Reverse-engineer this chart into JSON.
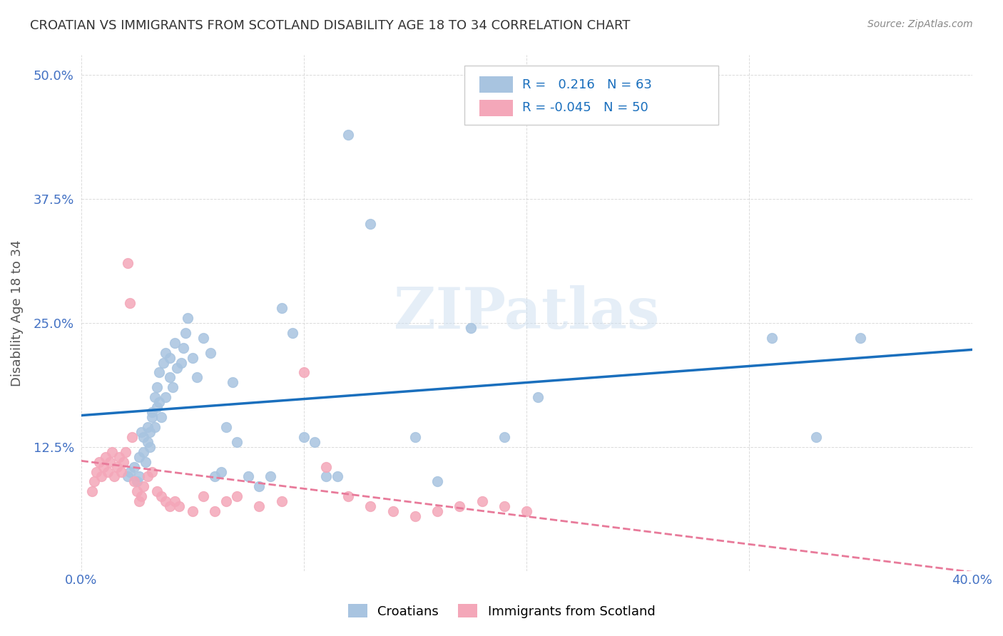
{
  "title": "CROATIAN VS IMMIGRANTS FROM SCOTLAND DISABILITY AGE 18 TO 34 CORRELATION CHART",
  "source": "Source: ZipAtlas.com",
  "ylabel": "Disability Age 18 to 34",
  "xlim": [
    0.0,
    0.4
  ],
  "ylim": [
    0.0,
    0.52
  ],
  "xticks": [
    0.0,
    0.1,
    0.2,
    0.3,
    0.4
  ],
  "yticks": [
    0.0,
    0.125,
    0.25,
    0.375,
    0.5
  ],
  "xticklabels": [
    "0.0%",
    "",
    "",
    "",
    "40.0%"
  ],
  "yticklabels": [
    "",
    "12.5%",
    "25.0%",
    "37.5%",
    "50.0%"
  ],
  "croatian_R": 0.216,
  "croatian_N": 63,
  "scotland_R": -0.045,
  "scotland_N": 50,
  "croatian_color": "#a8c4e0",
  "scotland_color": "#f4a7b9",
  "trend_croatian_color": "#1a6fbd",
  "trend_scotland_color": "#e87a9a",
  "background_color": "#ffffff",
  "grid_color": "#cccccc",
  "title_color": "#333333",
  "axis_label_color": "#555555",
  "tick_color": "#4472c4",
  "croatian_x": [
    0.021,
    0.022,
    0.024,
    0.025,
    0.026,
    0.026,
    0.027,
    0.028,
    0.028,
    0.029,
    0.03,
    0.03,
    0.031,
    0.031,
    0.032,
    0.032,
    0.033,
    0.033,
    0.034,
    0.034,
    0.035,
    0.035,
    0.036,
    0.037,
    0.038,
    0.038,
    0.04,
    0.04,
    0.041,
    0.042,
    0.043,
    0.045,
    0.046,
    0.047,
    0.048,
    0.05,
    0.052,
    0.055,
    0.058,
    0.06,
    0.063,
    0.065,
    0.068,
    0.07,
    0.075,
    0.08,
    0.085,
    0.09,
    0.095,
    0.1,
    0.105,
    0.11,
    0.115,
    0.12,
    0.13,
    0.15,
    0.16,
    0.175,
    0.19,
    0.205,
    0.31,
    0.33,
    0.35
  ],
  "croatian_y": [
    0.095,
    0.1,
    0.105,
    0.09,
    0.095,
    0.115,
    0.14,
    0.12,
    0.135,
    0.11,
    0.13,
    0.145,
    0.125,
    0.14,
    0.16,
    0.155,
    0.145,
    0.175,
    0.165,
    0.185,
    0.17,
    0.2,
    0.155,
    0.21,
    0.175,
    0.22,
    0.195,
    0.215,
    0.185,
    0.23,
    0.205,
    0.21,
    0.225,
    0.24,
    0.255,
    0.215,
    0.195,
    0.235,
    0.22,
    0.095,
    0.1,
    0.145,
    0.19,
    0.13,
    0.095,
    0.085,
    0.095,
    0.265,
    0.24,
    0.135,
    0.13,
    0.095,
    0.095,
    0.44,
    0.35,
    0.135,
    0.09,
    0.245,
    0.135,
    0.175,
    0.235,
    0.135,
    0.235
  ],
  "scotland_x": [
    0.005,
    0.006,
    0.007,
    0.008,
    0.009,
    0.01,
    0.011,
    0.012,
    0.013,
    0.014,
    0.015,
    0.016,
    0.017,
    0.018,
    0.019,
    0.02,
    0.021,
    0.022,
    0.023,
    0.024,
    0.025,
    0.026,
    0.027,
    0.028,
    0.03,
    0.032,
    0.034,
    0.036,
    0.038,
    0.04,
    0.042,
    0.044,
    0.05,
    0.055,
    0.06,
    0.065,
    0.07,
    0.08,
    0.09,
    0.1,
    0.11,
    0.12,
    0.13,
    0.14,
    0.15,
    0.16,
    0.17,
    0.18,
    0.19,
    0.2
  ],
  "scotland_y": [
    0.08,
    0.09,
    0.1,
    0.11,
    0.095,
    0.105,
    0.115,
    0.1,
    0.11,
    0.12,
    0.095,
    0.105,
    0.115,
    0.1,
    0.11,
    0.12,
    0.31,
    0.27,
    0.135,
    0.09,
    0.08,
    0.07,
    0.075,
    0.085,
    0.095,
    0.1,
    0.08,
    0.075,
    0.07,
    0.065,
    0.07,
    0.065,
    0.06,
    0.075,
    0.06,
    0.07,
    0.075,
    0.065,
    0.07,
    0.2,
    0.105,
    0.075,
    0.065,
    0.06,
    0.055,
    0.06,
    0.065,
    0.07,
    0.065,
    0.06
  ]
}
